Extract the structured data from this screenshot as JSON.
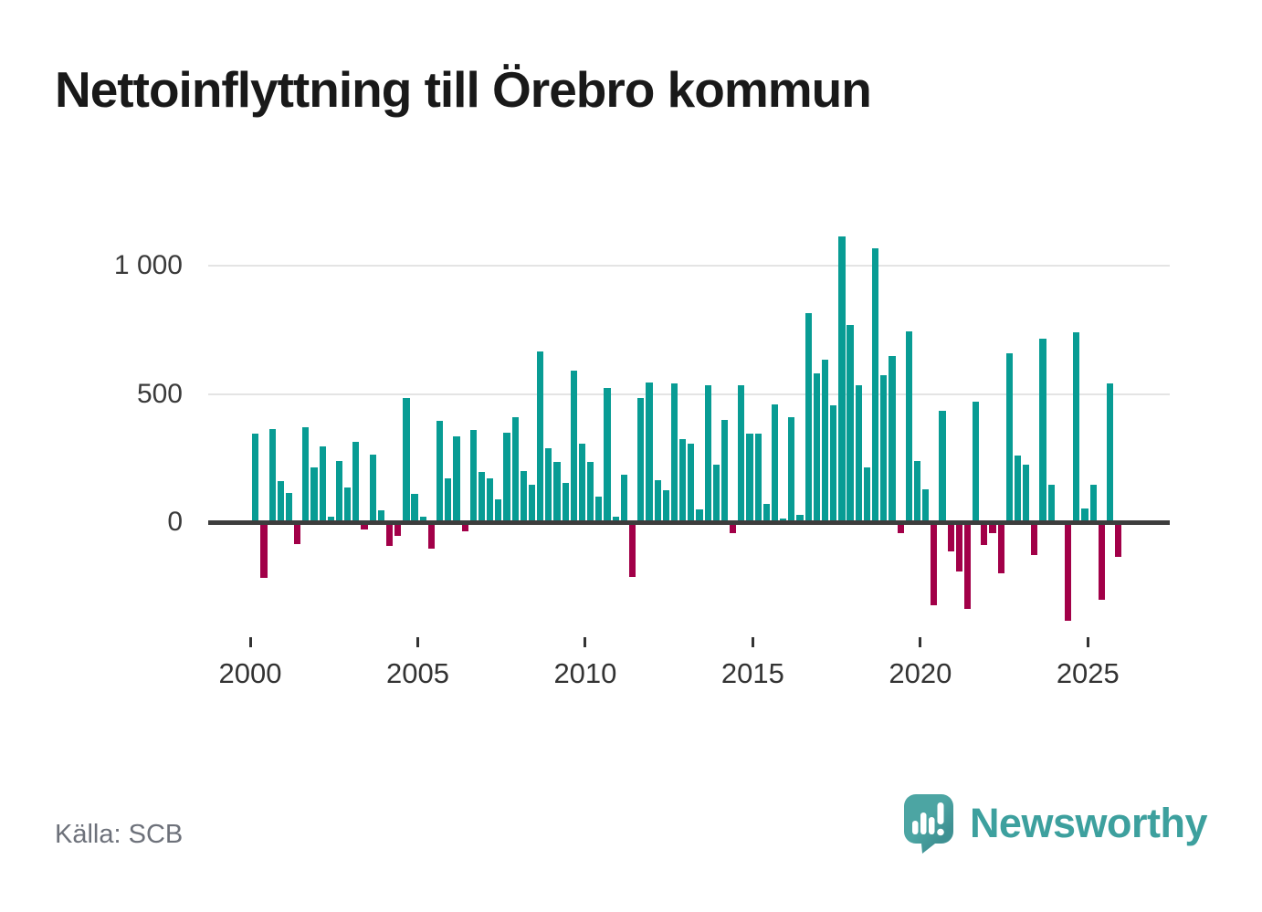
{
  "title": "Nettoinflyttning till Örebro kommun",
  "source": "Källa: SCB",
  "branding": {
    "logo_text": "Newsworthy",
    "logo_icon": "speech-bubble-bar-chart-icon"
  },
  "colors": {
    "positive": "#089c94",
    "negative": "#a20048",
    "axis_line": "#3d3d3d",
    "gridline": "#e4e4e4",
    "title_text": "#191919",
    "tick_text": "#333333",
    "source_text": "#6d717a",
    "brand_teal": "#3da09e",
    "background": "#ffffff"
  },
  "chart_data": {
    "type": "bar",
    "title": "Nettoinflyttning till Örebro kommun",
    "xlabel": "",
    "ylabel": "",
    "frequency": "quarterly",
    "start_year": 2000,
    "periods_per_year": 4,
    "start_period": "2000 Q1",
    "end_period": "2025 Q4",
    "grid": "horizontal",
    "legend": "none",
    "ylim": [
      -450,
      1200
    ],
    "y_ticks": [
      {
        "label": "1 000",
        "value": 1000
      },
      {
        "label": "500",
        "value": 500
      },
      {
        "label": "0",
        "value": 0
      }
    ],
    "x_ticks": [
      {
        "label": "2000",
        "year": 2000
      },
      {
        "label": "2005",
        "year": 2005
      },
      {
        "label": "2010",
        "year": 2010
      },
      {
        "label": "2015",
        "year": 2015
      },
      {
        "label": "2020",
        "year": 2020
      },
      {
        "label": "2025",
        "year": 2025
      }
    ],
    "values": [
      345,
      -210,
      365,
      160,
      115,
      -75,
      370,
      215,
      295,
      20,
      240,
      135,
      315,
      -20,
      265,
      45,
      -85,
      -45,
      485,
      110,
      20,
      -95,
      395,
      170,
      335,
      -25,
      360,
      195,
      170,
      90,
      350,
      410,
      200,
      145,
      665,
      290,
      235,
      155,
      590,
      305,
      235,
      100,
      525,
      20,
      185,
      -205,
      485,
      545,
      165,
      125,
      540,
      325,
      305,
      50,
      535,
      225,
      400,
      -35,
      535,
      345,
      345,
      70,
      460,
      15,
      410,
      30,
      815,
      580,
      635,
      455,
      1115,
      770,
      535,
      215,
      1070,
      575,
      650,
      -35,
      745,
      240,
      130,
      -315,
      435,
      -105,
      -185,
      -330,
      470,
      -80,
      -35,
      -190,
      660,
      260,
      225,
      -120,
      715,
      145,
      0,
      -375,
      740,
      55,
      145,
      -295,
      540,
      -125
    ]
  }
}
